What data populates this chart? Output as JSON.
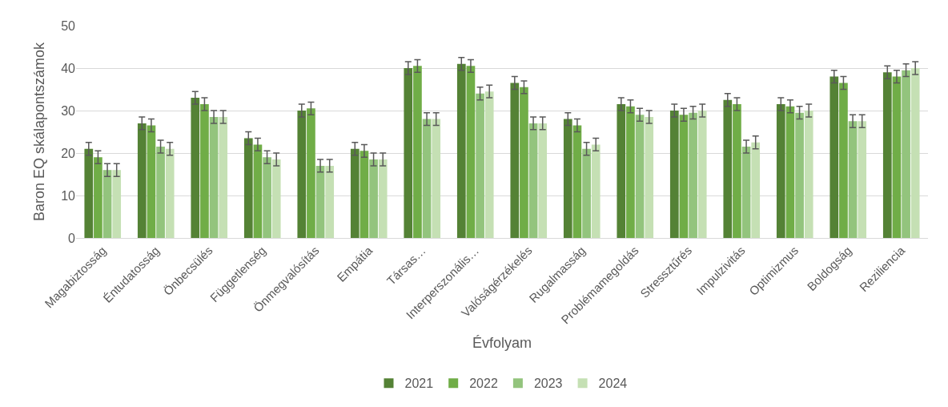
{
  "chart_data": {
    "type": "bar",
    "xlabel": "Évfolyam",
    "ylabel": "Baron EQ skálapontszámok",
    "categories": [
      "Magabiztosság",
      "Éntudatosság",
      "Önbecsülés",
      "Függetlenség",
      "Önmegvalósítás",
      "Empátia",
      "Társas…",
      "Interperszonális…",
      "Valóságérzékelés",
      "Rugalmasság",
      "Problémamegoldás",
      "Stressztűrés",
      "Impulzivitás",
      "Optimizmus",
      "Boldogság",
      "Reziliencia"
    ],
    "series": [
      {
        "name": "2021",
        "color": "#548235",
        "values": [
          21,
          27,
          33,
          23.5,
          30,
          21,
          40,
          41,
          36.5,
          28,
          31.5,
          30,
          32.5,
          31.5,
          38,
          39
        ],
        "errors": [
          1.5,
          1.5,
          1.5,
          1.5,
          1.5,
          1.5,
          1.5,
          1.5,
          1.5,
          1.5,
          1.5,
          1.5,
          1.5,
          1.5,
          1.5,
          1.5
        ]
      },
      {
        "name": "2022",
        "color": "#70ad47",
        "values": [
          19,
          26.5,
          31.5,
          22,
          30.5,
          20.5,
          40.5,
          40.5,
          35.5,
          26.5,
          31,
          29,
          31.5,
          31,
          36.5,
          38
        ],
        "errors": [
          1.5,
          1.5,
          1.5,
          1.5,
          1.5,
          1.5,
          1.5,
          1.5,
          1.5,
          1.5,
          1.5,
          1.5,
          1.5,
          1.5,
          1.5,
          1.5
        ]
      },
      {
        "name": "2023",
        "color": "#93c47d",
        "values": [
          16,
          21.5,
          28.5,
          19,
          17,
          18.5,
          28,
          34,
          27,
          21,
          29,
          29.5,
          21.5,
          29.5,
          27.5,
          39.5
        ],
        "errors": [
          1.5,
          1.5,
          1.5,
          1.5,
          1.5,
          1.5,
          1.5,
          1.5,
          1.5,
          1.5,
          1.5,
          1.5,
          1.5,
          1.5,
          1.5,
          1.5
        ]
      },
      {
        "name": "2024",
        "color": "#c5e0b4",
        "values": [
          16,
          21,
          28.5,
          18.5,
          17,
          18.5,
          28,
          34.5,
          27,
          22,
          28.5,
          30,
          22.5,
          30,
          27.5,
          40
        ],
        "errors": [
          1.5,
          1.5,
          1.5,
          1.5,
          1.5,
          1.5,
          1.5,
          1.5,
          1.5,
          1.5,
          1.5,
          1.5,
          1.5,
          1.5,
          1.5,
          1.5
        ]
      }
    ],
    "ylim": [
      0,
      50
    ],
    "yticks": [
      0,
      10,
      20,
      30,
      40,
      50
    ],
    "grid": "y",
    "legend": "bottom"
  }
}
